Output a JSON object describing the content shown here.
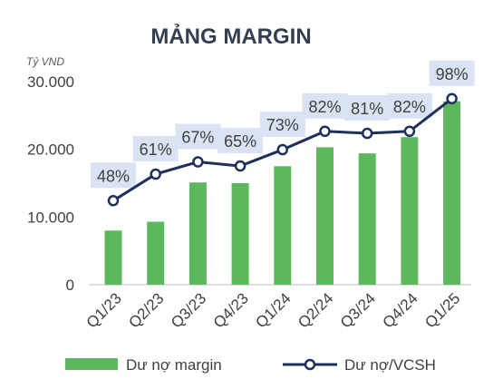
{
  "chart_data": {
    "type": "bar",
    "title": "MẢNG MARGIN",
    "unit_label": "Tỷ VND",
    "categories": [
      "Q1/23",
      "Q2/23",
      "Q3/23",
      "Q4/23",
      "Q1/24",
      "Q2/24",
      "Q3/24",
      "Q4/24",
      "Q1/25"
    ],
    "yticks": [
      "0",
      "10.000",
      "20.000",
      "30.000"
    ],
    "ylim": [
      0,
      30000
    ],
    "grid": false,
    "legend_position": "bottom",
    "series": [
      {
        "name": "Dư nợ margin",
        "type": "bar",
        "color": "#5cb85c",
        "values": [
          8000,
          9300,
          15100,
          15000,
          17500,
          20300,
          19400,
          21800,
          27100
        ]
      },
      {
        "name": "Dư nợ/VCSH",
        "type": "line",
        "color": "#1f2f5c",
        "marker": "circle-hollow",
        "labels": [
          "48%",
          "61%",
          "67%",
          "65%",
          "73%",
          "82%",
          "81%",
          "82%",
          "98%"
        ],
        "values": [
          48,
          61,
          67,
          65,
          73,
          82,
          81,
          82,
          98
        ]
      }
    ],
    "label_box_color": "#dae3f3"
  }
}
